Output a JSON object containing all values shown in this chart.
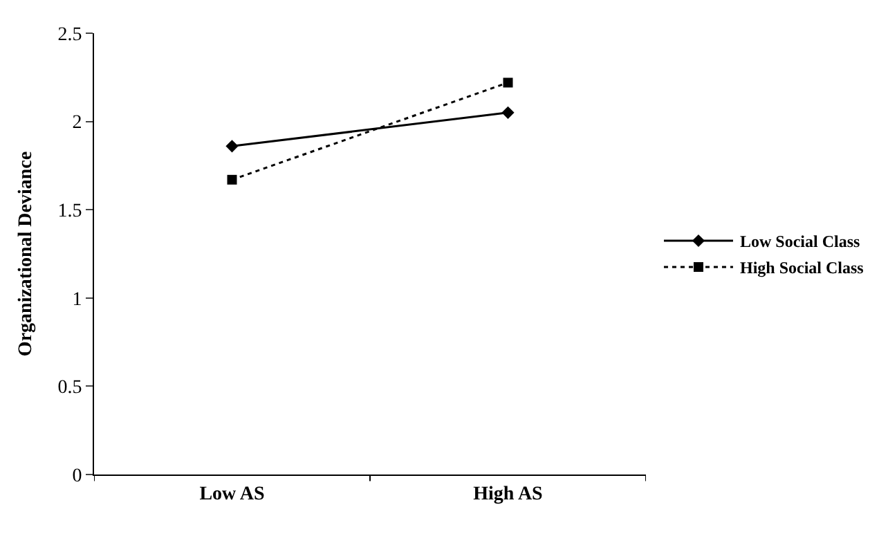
{
  "chart_data": {
    "type": "line",
    "ylabel": "Organizational Deviance",
    "categories": [
      "Low AS",
      "High AS"
    ],
    "series": [
      {
        "name": "Low Social Class",
        "color": "#000000",
        "values": [
          1.86,
          2.05
        ],
        "marker": "diamond",
        "line_style": "solid"
      },
      {
        "name": "High Social Class",
        "color": "#000000",
        "values": [
          1.67,
          2.22
        ],
        "marker": "square",
        "line_style": "dotted"
      }
    ],
    "ylim": [
      0,
      2.5
    ],
    "yticks": [
      0,
      0.5,
      1,
      1.5,
      2,
      2.5
    ],
    "grid": false,
    "legend": "right"
  }
}
